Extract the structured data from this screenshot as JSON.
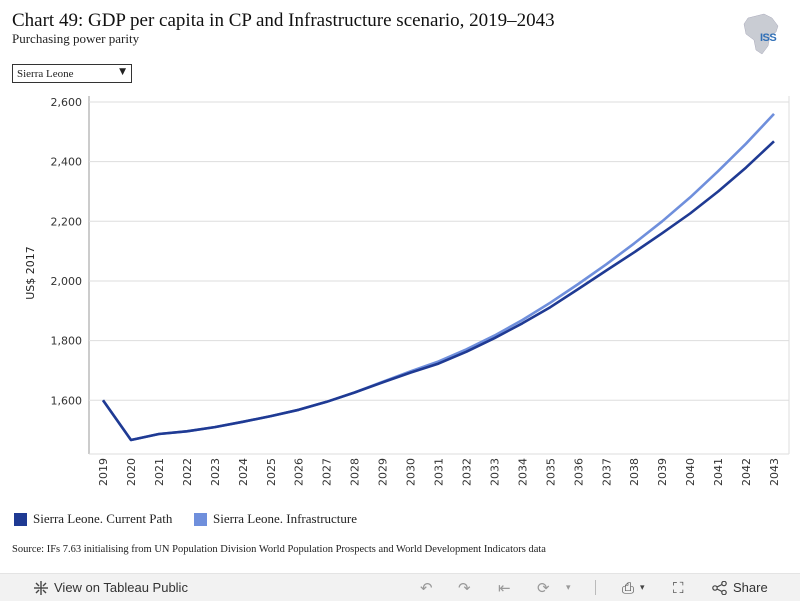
{
  "header": {
    "title": "Chart 49: GDP per capita in CP and Infrastructure scenario, 2019–2043",
    "subtitle": "Purchasing power parity",
    "logo_text": "ISS"
  },
  "filter": {
    "selected": "Sierra Leone"
  },
  "legend": [
    {
      "label": "Sierra Leone. Current Path",
      "color": "#1f3a93"
    },
    {
      "label": "Sierra Leone. Infrastructure",
      "color": "#6f8fdc"
    }
  ],
  "source": "Source: IFs 7.63 initialising from UN Population Division World Population Prospects and World Development Indicators data",
  "footer": {
    "view_label": "View on Tableau Public",
    "share_label": "Share"
  },
  "colors": {
    "current_path": "#1f3a93",
    "infrastructure": "#6f8fdc",
    "grid": "#dddddd"
  },
  "chart_data": {
    "type": "line",
    "title": "Chart 49: GDP per capita in CP and Infrastructure scenario, 2019–2043",
    "subtitle": "Purchasing power parity",
    "xlabel": "",
    "ylabel": "US$ 2017",
    "ylim": [
      1420,
      2620
    ],
    "yticks": [
      1600,
      1800,
      2000,
      2200,
      2400,
      2600
    ],
    "ytick_labels": [
      "1,600",
      "1,800",
      "2,000",
      "2,200",
      "2,400",
      "2,600"
    ],
    "grid": true,
    "legend_position": "bottom-left",
    "x": [
      2019,
      2020,
      2021,
      2022,
      2023,
      2024,
      2025,
      2026,
      2027,
      2028,
      2029,
      2030,
      2031,
      2032,
      2033,
      2034,
      2035,
      2036,
      2037,
      2038,
      2039,
      2040,
      2041,
      2042,
      2043
    ],
    "series": [
      {
        "name": "Sierra Leone. Current Path",
        "color": "#1f3a93",
        "values": [
          1600,
          1467,
          1487,
          1496,
          1510,
          1528,
          1547,
          1568,
          1595,
          1626,
          1660,
          1693,
          1723,
          1763,
          1808,
          1858,
          1912,
          1973,
          2035,
          2096,
          2160,
          2226,
          2300,
          2380,
          2468
        ]
      },
      {
        "name": "Sierra Leone. Infrastructure",
        "color": "#6f8fdc",
        "values": [
          1600,
          1467,
          1487,
          1496,
          1510,
          1528,
          1547,
          1568,
          1595,
          1626,
          1662,
          1697,
          1730,
          1771,
          1817,
          1869,
          1927,
          1990,
          2056,
          2126,
          2200,
          2280,
          2368,
          2460,
          2560
        ]
      }
    ]
  }
}
